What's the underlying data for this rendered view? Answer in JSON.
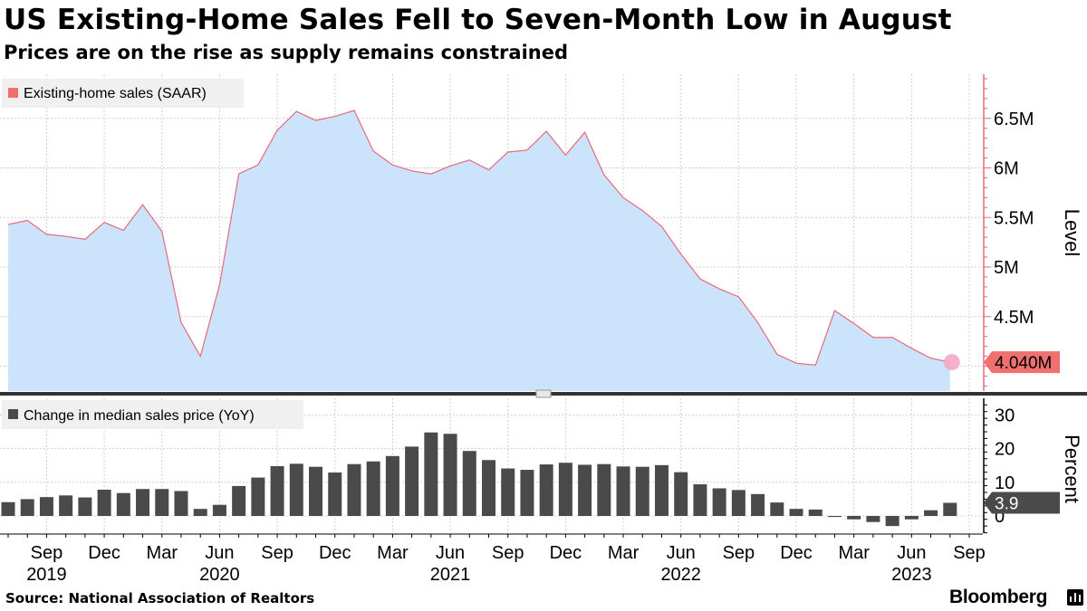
{
  "title": "US Existing-Home Sales Fell to Seven-Month Low in August",
  "subtitle": "Prices are on the rise as supply remains constrained",
  "source": "Source: National Association of Realtors",
  "brand": "Bloomberg",
  "colors": {
    "area_fill": "#cce4fb",
    "area_line": "#e8697a",
    "axis_red": "#e8697a",
    "bars": "#4a4a4a",
    "grid": "#d0d0d0",
    "end_dot": "#f4a7c6",
    "badge_bg": "#f07070",
    "legend_bg": "#f0f0f0"
  },
  "chart_data": [
    {
      "type": "area",
      "legend": "Existing-home sales (SAAR)",
      "y_axis_label": "Level",
      "y_ticks": [
        "4.5M",
        "5M",
        "5.5M",
        "6M",
        "6.5M"
      ],
      "y_tick_values": [
        4.5,
        5.0,
        5.5,
        6.0,
        6.5
      ],
      "ylim": [
        3.75,
        6.95
      ],
      "units": "millions",
      "last_value_label": "4.040M",
      "x": [
        "2019-07",
        "2019-08",
        "2019-09",
        "2019-10",
        "2019-11",
        "2019-12",
        "2020-01",
        "2020-02",
        "2020-03",
        "2020-04",
        "2020-05",
        "2020-06",
        "2020-07",
        "2020-08",
        "2020-09",
        "2020-10",
        "2020-11",
        "2020-12",
        "2021-01",
        "2021-02",
        "2021-03",
        "2021-04",
        "2021-05",
        "2021-06",
        "2021-07",
        "2021-08",
        "2021-09",
        "2021-10",
        "2021-11",
        "2021-12",
        "2022-01",
        "2022-02",
        "2022-03",
        "2022-04",
        "2022-05",
        "2022-06",
        "2022-07",
        "2022-08",
        "2022-09",
        "2022-10",
        "2022-11",
        "2022-12",
        "2023-01",
        "2023-02",
        "2023-03",
        "2023-04",
        "2023-05",
        "2023-06",
        "2023-07",
        "2023-08"
      ],
      "values": [
        5.43,
        5.47,
        5.33,
        5.31,
        5.28,
        5.45,
        5.37,
        5.63,
        5.36,
        4.44,
        4.1,
        4.82,
        5.94,
        6.03,
        6.38,
        6.57,
        6.48,
        6.52,
        6.58,
        6.17,
        6.03,
        5.97,
        5.94,
        6.02,
        6.08,
        5.98,
        6.16,
        6.18,
        6.37,
        6.13,
        6.36,
        5.93,
        5.7,
        5.57,
        5.41,
        5.13,
        4.88,
        4.78,
        4.7,
        4.44,
        4.12,
        4.03,
        4.01,
        4.56,
        4.43,
        4.29,
        4.29,
        4.18,
        4.08,
        4.04
      ]
    },
    {
      "type": "bar",
      "legend": "Change in median sales price (YoY)",
      "y_axis_label": "Percent",
      "y_ticks": [
        "0",
        "10",
        "20",
        "30"
      ],
      "y_tick_values": [
        0,
        10,
        20,
        30
      ],
      "ylim": [
        -5,
        33
      ],
      "units": "percent",
      "last_value_label": "3.9",
      "x": [
        "2019-07",
        "2019-08",
        "2019-09",
        "2019-10",
        "2019-11",
        "2019-12",
        "2020-01",
        "2020-02",
        "2020-03",
        "2020-04",
        "2020-05",
        "2020-06",
        "2020-07",
        "2020-08",
        "2020-09",
        "2020-10",
        "2020-11",
        "2020-12",
        "2021-01",
        "2021-02",
        "2021-03",
        "2021-04",
        "2021-05",
        "2021-06",
        "2021-07",
        "2021-08",
        "2021-09",
        "2021-10",
        "2021-11",
        "2021-12",
        "2022-01",
        "2022-02",
        "2022-03",
        "2022-04",
        "2022-05",
        "2022-06",
        "2022-07",
        "2022-08",
        "2022-09",
        "2022-10",
        "2022-11",
        "2022-12",
        "2023-01",
        "2023-02",
        "2023-03",
        "2023-04",
        "2023-05",
        "2023-06",
        "2023-07",
        "2023-08"
      ],
      "values": [
        4.1,
        5.0,
        5.6,
        6.1,
        5.5,
        7.8,
        6.8,
        8.0,
        8.0,
        7.4,
        2.1,
        3.3,
        8.9,
        11.4,
        14.8,
        15.5,
        14.6,
        12.9,
        15.4,
        16.2,
        17.8,
        20.6,
        24.8,
        24.4,
        19.3,
        16.6,
        14.1,
        13.7,
        15.3,
        15.8,
        15.2,
        15.4,
        14.7,
        14.6,
        15.1,
        13.0,
        9.4,
        8.2,
        7.7,
        6.5,
        4.0,
        2.1,
        1.9,
        -0.3,
        -1.0,
        -1.8,
        -3.0,
        -1.0,
        1.7,
        3.9
      ]
    }
  ],
  "x_axis": {
    "month_ticks": [
      {
        "date": "2019-09",
        "label": "Sep"
      },
      {
        "date": "2019-12",
        "label": "Dec"
      },
      {
        "date": "2020-03",
        "label": "Mar"
      },
      {
        "date": "2020-06",
        "label": "Jun"
      },
      {
        "date": "2020-09",
        "label": "Sep"
      },
      {
        "date": "2020-12",
        "label": "Dec"
      },
      {
        "date": "2021-03",
        "label": "Mar"
      },
      {
        "date": "2021-06",
        "label": "Jun"
      },
      {
        "date": "2021-09",
        "label": "Sep"
      },
      {
        "date": "2021-12",
        "label": "Dec"
      },
      {
        "date": "2022-03",
        "label": "Mar"
      },
      {
        "date": "2022-06",
        "label": "Jun"
      },
      {
        "date": "2022-09",
        "label": "Sep"
      },
      {
        "date": "2022-12",
        "label": "Dec"
      },
      {
        "date": "2023-03",
        "label": "Mar"
      },
      {
        "date": "2023-06",
        "label": "Jun"
      },
      {
        "date": "2023-09",
        "label": "Sep"
      }
    ],
    "year_ticks": [
      {
        "date": "2019-09",
        "label": "2019"
      },
      {
        "date": "2020-06",
        "label": "2020"
      },
      {
        "date": "2021-06",
        "label": "2021"
      },
      {
        "date": "2022-06",
        "label": "2022"
      },
      {
        "date": "2023-06",
        "label": "2023"
      }
    ]
  }
}
